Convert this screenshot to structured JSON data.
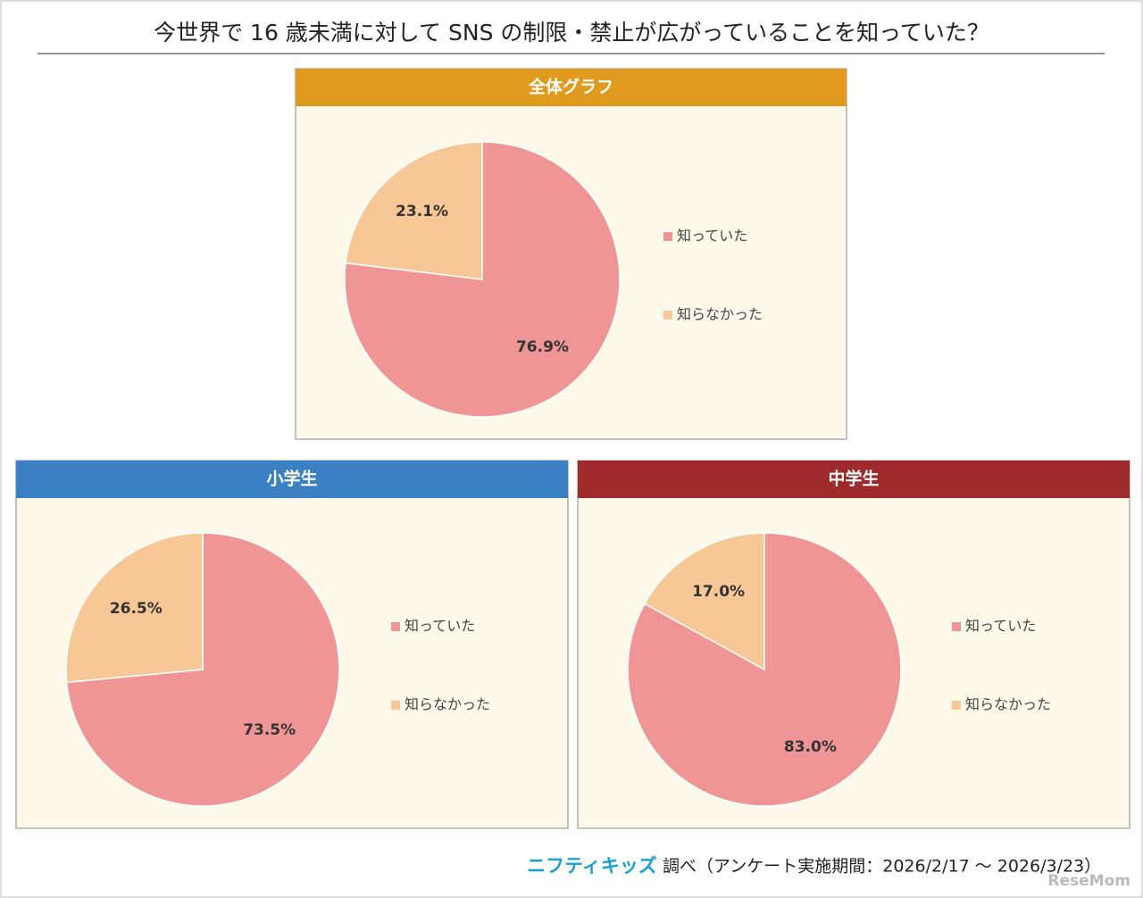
{
  "title": "今世界で 16 歳未満に対して SNS の制限・禁止が広がっていることを知っていた？",
  "footer_logo": "ニフティキッズ",
  "footer_text": "調べ（アンケート実施期間：2026/2/17 ～ 2026/3/23）",
  "watermark": "ReseMom",
  "chart_data": [
    {
      "type": "pie",
      "title": "全体グラフ",
      "header_color": "#e09b1f",
      "categories": [
        "知っていた",
        "知らなかった"
      ],
      "values": [
        76.9,
        23.1
      ],
      "value_labels": [
        "76.9%",
        "23.1%"
      ],
      "colors": [
        "#f09595",
        "#f7c796"
      ]
    },
    {
      "type": "pie",
      "title": "小学生",
      "header_color": "#3b80c2",
      "categories": [
        "知っていた",
        "知らなかった"
      ],
      "values": [
        73.5,
        26.5
      ],
      "value_labels": [
        "73.5%",
        "26.5%"
      ],
      "colors": [
        "#f09595",
        "#f7c796"
      ]
    },
    {
      "type": "pie",
      "title": "中学生",
      "header_color": "#9e2a2b",
      "categories": [
        "知っていた",
        "知らなかった"
      ],
      "values": [
        83.0,
        17.0
      ],
      "value_labels": [
        "83.0%",
        "17.0%"
      ],
      "colors": [
        "#f09595",
        "#f7c796"
      ]
    }
  ]
}
